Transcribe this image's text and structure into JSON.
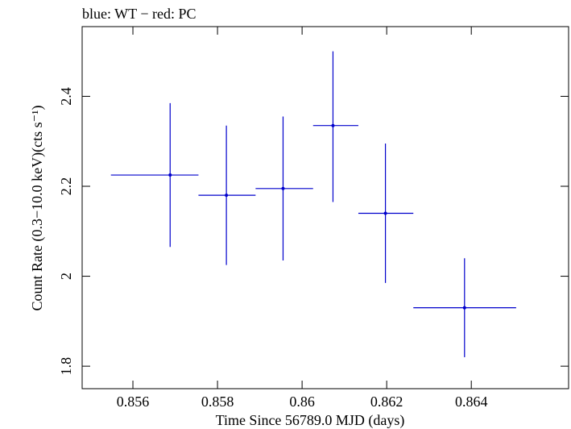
{
  "chart_data": {
    "type": "scatter",
    "title": "blue: WT − red: PC",
    "xlabel": "Time Since 56789.0 MJD (days)",
    "ylabel": "Count Rate (0.3−10.0 keV)(cts s⁻¹)",
    "xlim": [
      0.8548,
      0.8663
    ],
    "ylim": [
      1.75,
      2.555
    ],
    "xticks": [
      0.856,
      0.858,
      0.86,
      0.862,
      0.864
    ],
    "xtick_labels": [
      "0.856",
      "0.858",
      "0.86",
      "0.862",
      "0.864"
    ],
    "yticks": [
      1.8,
      2.0,
      2.2,
      2.4
    ],
    "ytick_labels": [
      "1.8",
      "2",
      "2.2",
      "2.4"
    ],
    "grid": false,
    "series": [
      {
        "color": "#0000cc",
        "points": [
          {
            "x": 0.85688,
            "xlo": 0.85548,
            "xhi": 0.85755,
            "y": 2.225,
            "ylo": 2.065,
            "yhi": 2.385
          },
          {
            "x": 0.85821,
            "xlo": 0.85755,
            "xhi": 0.8589,
            "y": 2.18,
            "ylo": 2.025,
            "yhi": 2.335
          },
          {
            "x": 0.85955,
            "xlo": 0.8589,
            "xhi": 0.86026,
            "y": 2.195,
            "ylo": 2.035,
            "yhi": 2.355
          },
          {
            "x": 0.86073,
            "xlo": 0.86026,
            "xhi": 0.86133,
            "y": 2.335,
            "ylo": 2.165,
            "yhi": 2.5
          },
          {
            "x": 0.86197,
            "xlo": 0.86133,
            "xhi": 0.86263,
            "y": 2.14,
            "ylo": 1.985,
            "yhi": 2.295
          },
          {
            "x": 0.86384,
            "xlo": 0.86263,
            "xhi": 0.86506,
            "y": 1.93,
            "ylo": 1.82,
            "yhi": 2.04
          }
        ]
      }
    ]
  }
}
